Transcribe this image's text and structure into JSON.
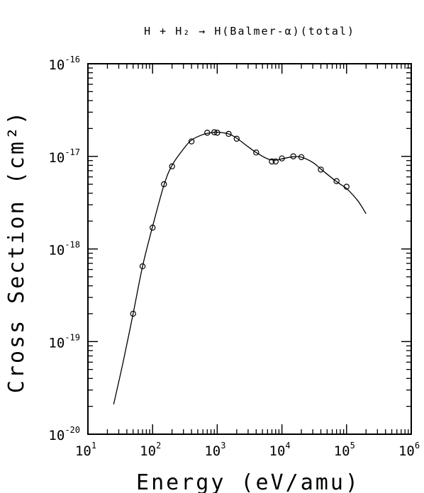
{
  "chart_data": {
    "type": "scatter",
    "title": "H + H₂ → H(Balmer-α)(total)",
    "xlabel": "Energy (eV/amu)",
    "ylabel": "Cross Section (cm²)",
    "x_scale": "log",
    "y_scale": "log",
    "xlim": [
      10,
      1000000
    ],
    "ylim": [
      1e-20,
      1e-16
    ],
    "x_ticks": [
      {
        "base": "10",
        "exp": "1"
      },
      {
        "base": "10",
        "exp": "2"
      },
      {
        "base": "10",
        "exp": "3"
      },
      {
        "base": "10",
        "exp": "4"
      },
      {
        "base": "10",
        "exp": "5"
      },
      {
        "base": "10",
        "exp": "6"
      }
    ],
    "y_ticks": [
      {
        "base": "10",
        "exp": "-20"
      },
      {
        "base": "10",
        "exp": "-19"
      },
      {
        "base": "10",
        "exp": "-18"
      },
      {
        "base": "10",
        "exp": "-17"
      },
      {
        "base": "10",
        "exp": "-16"
      }
    ],
    "grid": false,
    "series": [
      {
        "style": "markers",
        "marker": "open-circle",
        "x": [
          50,
          70,
          100,
          150,
          200,
          400,
          700,
          900,
          1000,
          1500,
          2000,
          4000,
          7000,
          8000,
          10000,
          15000,
          20000,
          40000,
          70000,
          100000
        ],
        "y": [
          2e-19,
          6.5e-19,
          1.7e-18,
          5e-18,
          7.8e-18,
          1.45e-17,
          1.8e-17,
          1.82e-17,
          1.8e-17,
          1.75e-17,
          1.55e-17,
          1.1e-17,
          8.8e-18,
          8.8e-18,
          9.5e-18,
          1e-17,
          9.8e-18,
          7.2e-18,
          5.4e-18,
          4.7e-18
        ]
      },
      {
        "style": "line",
        "x": [
          25,
          35,
          50,
          70,
          100,
          150,
          200,
          300,
          400,
          600,
          800,
          1000,
          1500,
          2000,
          3000,
          4000,
          6000,
          8000,
          10000,
          15000,
          20000,
          30000,
          40000,
          60000,
          80000,
          100000,
          150000,
          200000
        ],
        "y": [
          2.1e-20,
          6e-20,
          2e-19,
          6.5e-19,
          1.75e-18,
          4.9e-18,
          8e-18,
          1.2e-17,
          1.5e-17,
          1.72e-17,
          1.8e-17,
          1.82e-17,
          1.75e-17,
          1.57e-17,
          1.27e-17,
          1.1e-17,
          9.4e-18,
          9.1e-18,
          9.4e-18,
          9.9e-18,
          9.8e-18,
          8.6e-18,
          7.3e-18,
          5.8e-18,
          5e-18,
          4.5e-18,
          3.3e-18,
          2.4e-18
        ]
      }
    ]
  }
}
